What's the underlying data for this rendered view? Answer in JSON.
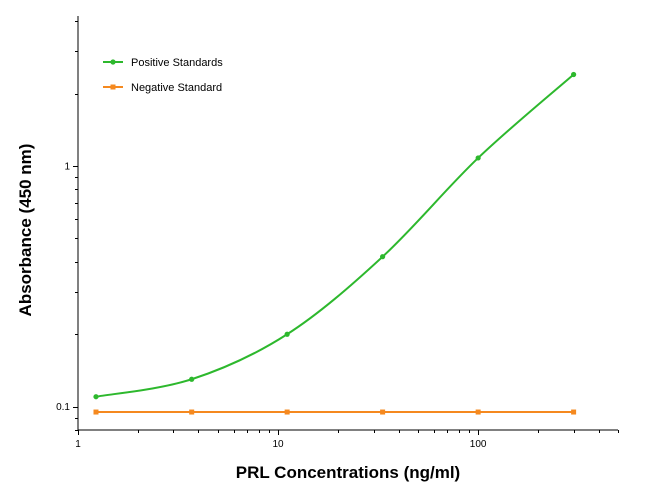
{
  "chart_data": {
    "type": "line",
    "title": "",
    "xlabel": "PRL Concentrations (ng/ml)",
    "ylabel": "Absorbance (450 nm)",
    "x_scale": "log",
    "y_scale": "log",
    "xlim": [
      1,
      500
    ],
    "ylim": [
      0.08,
      4.2
    ],
    "x_ticks": [
      {
        "value": 1,
        "label": "1"
      },
      {
        "value": 10,
        "label": "10"
      },
      {
        "value": 100,
        "label": "100"
      }
    ],
    "y_ticks": [
      {
        "value": 0.1,
        "label": "0.1"
      },
      {
        "value": 1,
        "label": "1"
      }
    ],
    "grid": false,
    "legend_position": "top-left",
    "series": [
      {
        "name": "Positive Standards",
        "color": "#2db82d",
        "marker": "circle",
        "x": [
          1.23,
          3.7,
          11.1,
          33.3,
          100,
          300
        ],
        "y": [
          0.11,
          0.13,
          0.2,
          0.42,
          1.08,
          2.4
        ]
      },
      {
        "name": "Negative Standard",
        "color": "#f5891f",
        "marker": "square",
        "x": [
          1.23,
          3.7,
          11.1,
          33.3,
          100,
          300
        ],
        "y": [
          0.095,
          0.095,
          0.095,
          0.095,
          0.095,
          0.095
        ]
      }
    ]
  }
}
